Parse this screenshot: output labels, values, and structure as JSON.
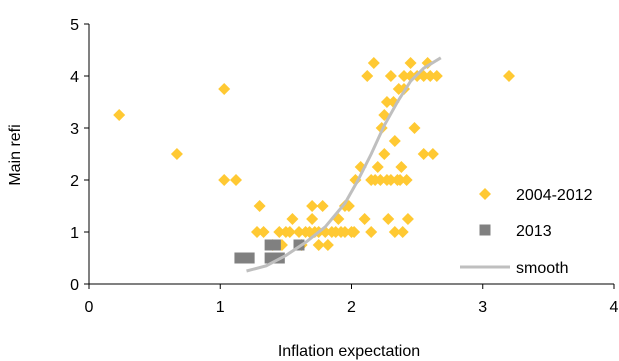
{
  "chart_data": {
    "type": "scatter",
    "xlabel": "Inflation expectation",
    "ylabel": "Main refi",
    "xlim": [
      0,
      4
    ],
    "ylim": [
      0,
      5
    ],
    "xticks": [
      "0",
      "1",
      "2",
      "3",
      "4"
    ],
    "yticks": [
      "0",
      "1",
      "2",
      "3",
      "4",
      "5"
    ],
    "grid": false,
    "legend_position": "bottom-right",
    "series": [
      {
        "name": "2004-2012",
        "kind": "scatter",
        "marker": "diamond",
        "color": "#FFC933",
        "points": [
          [
            0.23,
            3.25
          ],
          [
            0.67,
            2.5
          ],
          [
            1.03,
            3.75
          ],
          [
            1.03,
            2.0
          ],
          [
            1.12,
            2.0
          ],
          [
            1.28,
            1.0
          ],
          [
            1.3,
            1.5
          ],
          [
            1.33,
            1.0
          ],
          [
            1.4,
            0.75
          ],
          [
            1.45,
            1.0
          ],
          [
            1.47,
            0.75
          ],
          [
            1.5,
            1.0
          ],
          [
            1.53,
            1.0
          ],
          [
            1.55,
            1.25
          ],
          [
            1.6,
            1.0
          ],
          [
            1.62,
            0.75
          ],
          [
            1.65,
            1.0
          ],
          [
            1.68,
            1.0
          ],
          [
            1.7,
            1.25
          ],
          [
            1.7,
            1.5
          ],
          [
            1.72,
            1.0
          ],
          [
            1.75,
            1.0
          ],
          [
            1.75,
            0.75
          ],
          [
            1.78,
            1.5
          ],
          [
            1.8,
            1.0
          ],
          [
            1.82,
            0.75
          ],
          [
            1.85,
            1.0
          ],
          [
            1.88,
            1.0
          ],
          [
            1.9,
            1.25
          ],
          [
            1.92,
            1.0
          ],
          [
            1.95,
            1.0
          ],
          [
            1.95,
            1.5
          ],
          [
            1.98,
            1.5
          ],
          [
            2.0,
            1.0
          ],
          [
            2.02,
            1.0
          ],
          [
            2.03,
            2.0
          ],
          [
            2.07,
            2.25
          ],
          [
            2.1,
            1.25
          ],
          [
            2.12,
            4.0
          ],
          [
            2.15,
            1.0
          ],
          [
            2.15,
            2.0
          ],
          [
            2.17,
            4.25
          ],
          [
            2.18,
            2.0
          ],
          [
            2.2,
            2.25
          ],
          [
            2.22,
            2.0
          ],
          [
            2.23,
            3.0
          ],
          [
            2.25,
            3.25
          ],
          [
            2.25,
            2.5
          ],
          [
            2.27,
            2.0
          ],
          [
            2.27,
            3.5
          ],
          [
            2.28,
            1.25
          ],
          [
            2.3,
            2.0
          ],
          [
            2.3,
            4.0
          ],
          [
            2.32,
            3.5
          ],
          [
            2.33,
            2.75
          ],
          [
            2.33,
            1.0
          ],
          [
            2.35,
            2.0
          ],
          [
            2.36,
            3.75
          ],
          [
            2.37,
            2.0
          ],
          [
            2.38,
            2.25
          ],
          [
            2.39,
            1.0
          ],
          [
            2.4,
            4.0
          ],
          [
            2.4,
            3.75
          ],
          [
            2.42,
            2.0
          ],
          [
            2.43,
            1.25
          ],
          [
            2.45,
            4.25
          ],
          [
            2.45,
            4.0
          ],
          [
            2.48,
            3.0
          ],
          [
            2.5,
            4.0
          ],
          [
            2.55,
            2.5
          ],
          [
            2.55,
            4.0
          ],
          [
            2.58,
            4.25
          ],
          [
            2.6,
            4.0
          ],
          [
            2.62,
            2.5
          ],
          [
            2.65,
            4.0
          ],
          [
            3.2,
            4.0
          ]
        ]
      },
      {
        "name": "2013",
        "kind": "scatter",
        "marker": "square",
        "color": "#808080",
        "points": [
          [
            1.15,
            0.5
          ],
          [
            1.22,
            0.5
          ],
          [
            1.38,
            0.75
          ],
          [
            1.42,
            0.75
          ],
          [
            1.38,
            0.5
          ],
          [
            1.45,
            0.5
          ],
          [
            1.6,
            0.75
          ]
        ]
      },
      {
        "name": "smooth",
        "kind": "line",
        "color": "#BFBFBF",
        "points": [
          [
            1.2,
            0.25
          ],
          [
            1.35,
            0.35
          ],
          [
            1.5,
            0.55
          ],
          [
            1.65,
            0.8
          ],
          [
            1.8,
            1.1
          ],
          [
            1.95,
            1.55
          ],
          [
            2.05,
            2.0
          ],
          [
            2.15,
            2.5
          ],
          [
            2.25,
            3.05
          ],
          [
            2.35,
            3.5
          ],
          [
            2.45,
            3.9
          ],
          [
            2.55,
            4.15
          ],
          [
            2.68,
            4.35
          ]
        ]
      }
    ]
  }
}
